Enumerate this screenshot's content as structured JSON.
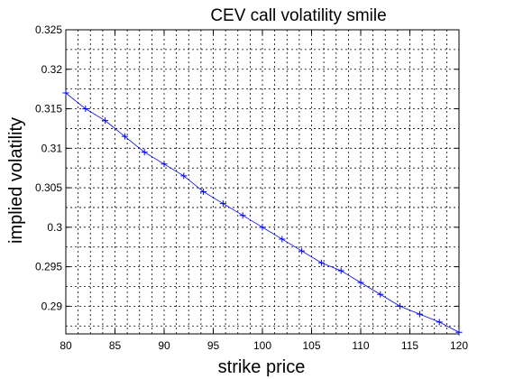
{
  "chart_data": {
    "type": "line",
    "title": "CEV call volatility smile",
    "xlabel": "strike price",
    "ylabel": "implied volatility",
    "xlim": [
      80,
      120
    ],
    "ylim": [
      0.2865,
      0.325
    ],
    "xticks": [
      80,
      85,
      90,
      95,
      100,
      105,
      110,
      115,
      120
    ],
    "xtick_labels": [
      "80",
      "85",
      "90",
      "95",
      "100",
      "105",
      "110",
      "115",
      "120"
    ],
    "yticks": [
      0.29,
      0.295,
      0.3,
      0.305,
      0.31,
      0.315,
      0.32,
      0.325
    ],
    "ytick_labels": [
      "0.29",
      "0.295",
      "0.3",
      "0.305",
      "0.31",
      "0.315",
      "0.32",
      "0.325"
    ],
    "grid": true,
    "series": [
      {
        "color": "#0000ff",
        "marker": "plus",
        "line_style": "solid",
        "x": [
          80,
          82,
          84,
          86,
          88,
          90,
          92,
          94,
          96,
          98,
          100,
          102,
          104,
          106,
          108,
          110,
          112,
          114,
          116,
          118,
          120
        ],
        "y": [
          0.317,
          0.315,
          0.3135,
          0.3115,
          0.3095,
          0.308,
          0.3065,
          0.3045,
          0.303,
          0.3015,
          0.3,
          0.2985,
          0.297,
          0.2955,
          0.2945,
          0.293,
          0.2915,
          0.29,
          0.289,
          0.288,
          0.2867
        ]
      }
    ]
  }
}
